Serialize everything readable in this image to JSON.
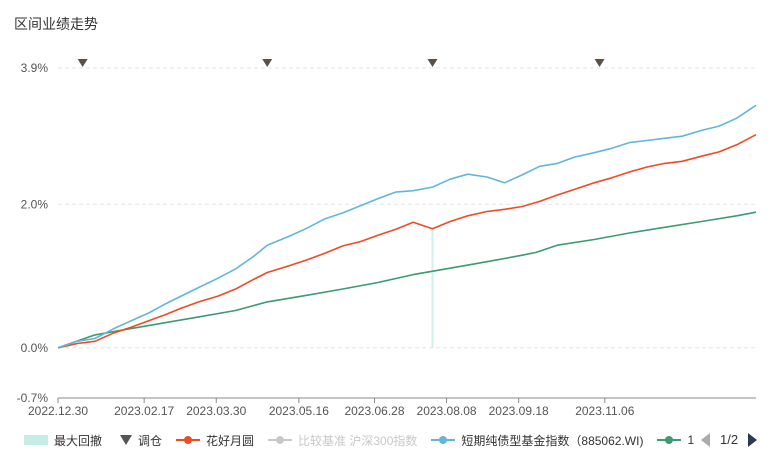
{
  "title": "区间业绩走势",
  "legend": {
    "drawdown": "最大回撤",
    "rebalance": "调仓",
    "fund": "花好月圆",
    "benchmark": "比较基准 沪深300指数",
    "index": "短期纯债型基金指数（885062.WI)",
    "extra": "1"
  },
  "pager": {
    "text": "1/2"
  },
  "chart_data": {
    "type": "line",
    "title": "",
    "xlabel": "",
    "ylabel": "",
    "ylim": [
      -0.7,
      3.9
    ],
    "y_ticks": [
      "3.9%",
      "2.0%",
      "0.0%",
      "-0.7%"
    ],
    "y_tick_values": [
      3.9,
      2.0,
      0.0,
      -0.7
    ],
    "x_ticks": [
      "2022.12.30",
      "2023.02.17",
      "2023.03.30",
      "2023.05.16",
      "2023.06.28",
      "2023.08.08",
      "2023.09.18",
      "2023.11.06"
    ],
    "x_range": [
      "2022.12.30",
      "2024.01.31"
    ],
    "grid": true,
    "legend_position": "bottom",
    "rebalance_dates": [
      "2023.01.13",
      "2023.04.28",
      "2023.07.31",
      "2023.11.03"
    ],
    "drawdown_date": "2023.07.31",
    "colors": {
      "index": "#62b6d8",
      "fund": "#f04a24",
      "extra": "#3d9a72",
      "benchmark": "#c8c8c8",
      "marker": "#5a5048",
      "drawdown": "#c6ece6",
      "grid": "#e3e3e3"
    },
    "series": [
      {
        "name": "短期纯债型基金指数（885062.WI)",
        "key": "index",
        "x": [
          "2022.12.30",
          "2023.01.10",
          "2023.01.20",
          "2023.01.31",
          "2023.02.10",
          "2023.02.20",
          "2023.03.01",
          "2023.03.10",
          "2023.03.20",
          "2023.03.31",
          "2023.04.10",
          "2023.04.20",
          "2023.04.28",
          "2023.05.10",
          "2023.05.20",
          "2023.05.31",
          "2023.06.10",
          "2023.06.20",
          "2023.06.30",
          "2023.07.10",
          "2023.07.20",
          "2023.07.31",
          "2023.08.10",
          "2023.08.20",
          "2023.08.31",
          "2023.09.10",
          "2023.09.20",
          "2023.09.30",
          "2023.10.10",
          "2023.10.20",
          "2023.10.31",
          "2023.11.10",
          "2023.11.20",
          "2023.11.30",
          "2023.12.10",
          "2023.12.20",
          "2023.12.31",
          "2024.01.10",
          "2024.01.20",
          "2024.01.31"
        ],
        "values": [
          0.0,
          0.09,
          0.13,
          0.27,
          0.38,
          0.49,
          0.61,
          0.72,
          0.84,
          0.97,
          1.1,
          1.27,
          1.43,
          1.55,
          1.66,
          1.8,
          1.88,
          1.98,
          2.08,
          2.17,
          2.19,
          2.24,
          2.35,
          2.42,
          2.38,
          2.3,
          2.41,
          2.53,
          2.57,
          2.66,
          2.72,
          2.78,
          2.86,
          2.89,
          2.92,
          2.95,
          3.03,
          3.09,
          3.2,
          3.38
        ]
      },
      {
        "name": "花好月圆",
        "key": "fund",
        "x": [
          "2022.12.30",
          "2023.01.10",
          "2023.01.20",
          "2023.01.31",
          "2023.02.10",
          "2023.02.20",
          "2023.03.01",
          "2023.03.10",
          "2023.03.20",
          "2023.03.31",
          "2023.04.10",
          "2023.04.20",
          "2023.04.28",
          "2023.05.10",
          "2023.05.20",
          "2023.05.31",
          "2023.06.10",
          "2023.06.20",
          "2023.06.30",
          "2023.07.10",
          "2023.07.20",
          "2023.07.31",
          "2023.08.10",
          "2023.08.20",
          "2023.08.31",
          "2023.09.10",
          "2023.09.20",
          "2023.09.30",
          "2023.10.10",
          "2023.10.20",
          "2023.10.31",
          "2023.11.10",
          "2023.11.20",
          "2023.11.30",
          "2023.12.10",
          "2023.12.20",
          "2023.12.31",
          "2024.01.10",
          "2024.01.20",
          "2024.01.31"
        ],
        "values": [
          0.0,
          0.06,
          0.09,
          0.21,
          0.29,
          0.38,
          0.46,
          0.55,
          0.64,
          0.72,
          0.82,
          0.95,
          1.05,
          1.14,
          1.22,
          1.32,
          1.42,
          1.48,
          1.57,
          1.65,
          1.75,
          1.66,
          1.76,
          1.84,
          1.9,
          1.93,
          1.97,
          2.04,
          2.13,
          2.21,
          2.3,
          2.37,
          2.45,
          2.52,
          2.57,
          2.6,
          2.67,
          2.73,
          2.83,
          2.97
        ]
      },
      {
        "name": "1",
        "key": "extra",
        "x": [
          "2022.12.30",
          "2023.01.20",
          "2023.02.10",
          "2023.03.01",
          "2023.03.20",
          "2023.04.10",
          "2023.04.28",
          "2023.05.20",
          "2023.06.10",
          "2023.06.30",
          "2023.07.20",
          "2023.08.10",
          "2023.08.31",
          "2023.09.20",
          "2023.09.28",
          "2023.10.10",
          "2023.10.31",
          "2023.11.20",
          "2023.12.10",
          "2023.12.31",
          "2024.01.20",
          "2024.01.31"
        ],
        "values": [
          0.0,
          0.18,
          0.27,
          0.35,
          0.43,
          0.52,
          0.64,
          0.73,
          0.82,
          0.91,
          1.02,
          1.11,
          1.2,
          1.29,
          1.33,
          1.43,
          1.51,
          1.6,
          1.68,
          1.76,
          1.84,
          1.89
        ]
      }
    ]
  }
}
